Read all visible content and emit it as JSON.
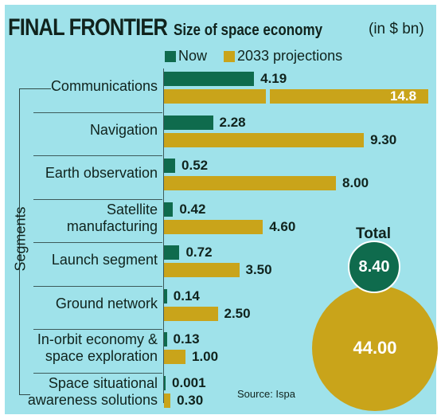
{
  "title": "FINAL FRONTIER",
  "subtitle": "Size of space economy",
  "unit": "(in $ bn)",
  "axis_label": "Segments",
  "source": "Source: Ispa",
  "colors": {
    "now": "#0f6b4d",
    "projection": "#c9a41a",
    "background": "#9fe2ea"
  },
  "chart_data": {
    "type": "bar",
    "orientation": "horizontal",
    "title": "FINAL FRONTIER",
    "subtitle": "Size of space economy",
    "unit": "(in $ bn)",
    "ylabel": "Segments",
    "categories": [
      [
        "Communications"
      ],
      [
        "Navigation"
      ],
      [
        "Earth observation"
      ],
      [
        "Satellite",
        "manufacturing"
      ],
      [
        "Launch segment"
      ],
      [
        "Ground network"
      ],
      [
        "In-orbit economy &",
        "space exploration"
      ],
      [
        "Space situational",
        "awareness solutions"
      ]
    ],
    "series": [
      {
        "name": "Now",
        "values": [
          4.19,
          2.28,
          0.52,
          0.42,
          0.72,
          0.14,
          0.13,
          0.001
        ],
        "labels": [
          "4.19",
          "2.28",
          "0.52",
          "0.42",
          "0.72",
          "0.14",
          "0.13",
          "0.001"
        ]
      },
      {
        "name": "2033 projections",
        "values": [
          14.8,
          9.3,
          8.0,
          4.6,
          3.5,
          2.5,
          1.0,
          0.3
        ],
        "labels": [
          "14.8",
          "9.30",
          "8.00",
          "4.60",
          "3.50",
          "2.50",
          "1.00",
          "0.30"
        ]
      }
    ],
    "axis_break": "first projection bar is broken",
    "legend_position": "top",
    "totals": {
      "label": "Total",
      "now": "8.40",
      "projection": "44.00"
    }
  }
}
